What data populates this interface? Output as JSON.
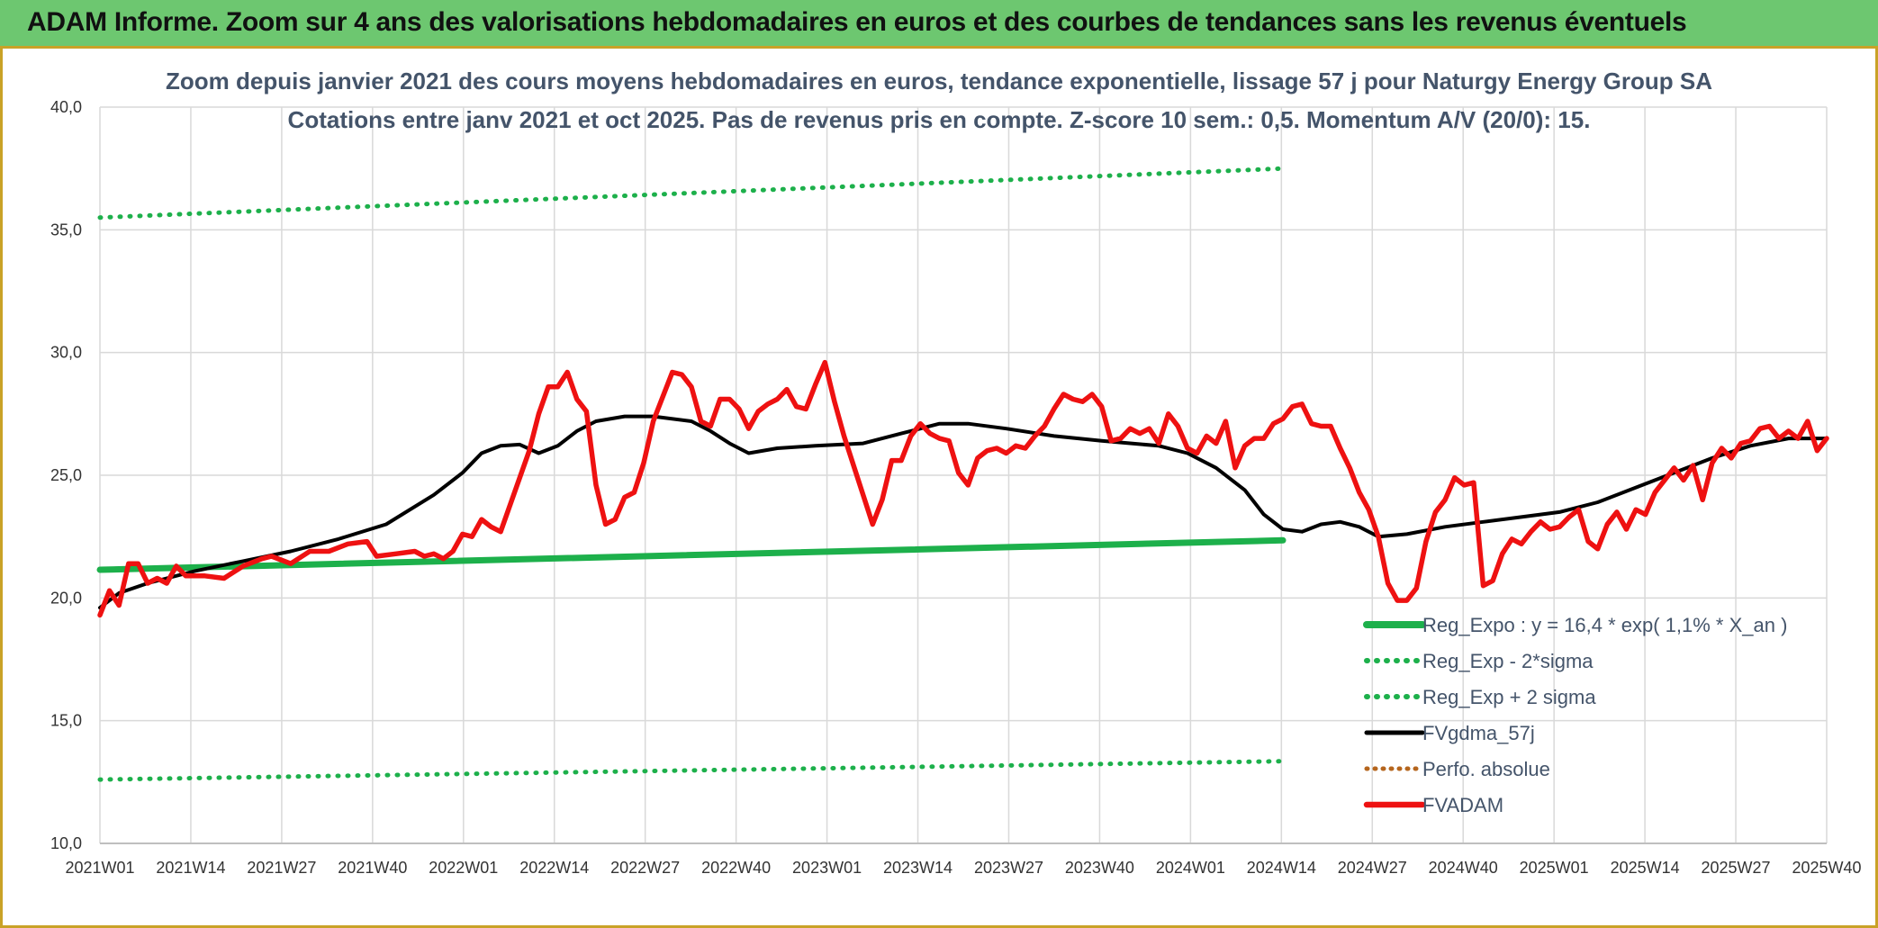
{
  "header": {
    "title": "ADAM Informe. Zoom sur 4 ans des valorisations hebdomadaires en euros et des courbes de tendances sans les revenus éventuels"
  },
  "colors": {
    "green": "#1db04b",
    "black": "#000000",
    "red": "#ee1111",
    "brown": "#b5651d",
    "grid": "#d9d9d9",
    "banner": "#6dc770"
  },
  "chart_data": {
    "type": "line",
    "title_line1": "Zoom depuis janvier 2021 des cours moyens hebdomadaires en euros, tendance exponentielle, lissage 57 j pour Naturgy Energy Group SA",
    "title_line2": "Cotations entre janv 2021 et oct 2025. Pas de revenus pris en compte. Z-score 10 sem.: 0,5. Momentum A/V (20/0): 15.",
    "ylim": [
      10,
      40
    ],
    "y_ticks": [
      "10,0",
      "15,0",
      "20,0",
      "25,0",
      "30,0",
      "35,0",
      "40,0"
    ],
    "x_count": 249,
    "x_tick_labels": [
      "2021W01",
      "2021W14",
      "2021W27",
      "2021W40",
      "2022W01",
      "2022W14",
      "2022W27",
      "2022W40",
      "2023W01",
      "2023W14",
      "2023W27",
      "2023W40",
      "2024W01",
      "2024W14",
      "2024W27",
      "2024W40",
      "2025W01",
      "2025W14",
      "2025W27",
      "2025W40"
    ],
    "series": [
      {
        "name": "Reg_Expo : y = 16,4 * exp( 1,1% *  X_an )",
        "style": "solid-green",
        "anchors": [
          [
            0,
            21.15
          ],
          [
            248,
            22.35
          ]
        ]
      },
      {
        "name": "Reg_Exp - 2*sigma",
        "style": "dotted-green",
        "anchors": [
          [
            0,
            12.6
          ],
          [
            248,
            13.35
          ]
        ]
      },
      {
        "name": "Reg_Exp + 2 sigma",
        "style": "dotted-green",
        "anchors": [
          [
            0,
            35.5
          ],
          [
            248,
            37.5
          ]
        ]
      },
      {
        "name": "FVgdma_57j",
        "style": "solid-black",
        "anchors": [
          [
            0,
            19.6
          ],
          [
            4,
            20.2
          ],
          [
            10,
            20.6
          ],
          [
            20,
            21.1
          ],
          [
            30,
            21.5
          ],
          [
            40,
            21.9
          ],
          [
            50,
            22.4
          ],
          [
            60,
            23.0
          ],
          [
            70,
            24.2
          ],
          [
            76,
            25.1
          ],
          [
            80,
            25.9
          ],
          [
            84,
            26.2
          ],
          [
            88,
            26.25
          ],
          [
            92,
            25.9
          ],
          [
            96,
            26.2
          ],
          [
            100,
            26.8
          ],
          [
            104,
            27.2
          ],
          [
            110,
            27.4
          ],
          [
            116,
            27.4
          ],
          [
            124,
            27.2
          ],
          [
            128,
            26.8
          ],
          [
            132,
            26.3
          ],
          [
            136,
            25.9
          ],
          [
            142,
            26.1
          ],
          [
            150,
            26.2
          ],
          [
            160,
            26.3
          ],
          [
            168,
            26.7
          ],
          [
            176,
            27.1
          ],
          [
            182,
            27.1
          ],
          [
            190,
            26.9
          ],
          [
            200,
            26.6
          ],
          [
            210,
            26.4
          ],
          [
            222,
            26.2
          ],
          [
            228,
            25.9
          ],
          [
            234,
            25.3
          ],
          [
            240,
            24.4
          ],
          [
            244,
            23.4
          ],
          [
            248,
            22.8
          ],
          [
            252,
            22.7
          ],
          [
            256,
            23.0
          ],
          [
            260,
            23.1
          ],
          [
            264,
            22.9
          ],
          [
            268,
            22.5
          ],
          [
            274,
            22.6
          ],
          [
            282,
            22.9
          ],
          [
            290,
            23.1
          ],
          [
            298,
            23.3
          ],
          [
            306,
            23.5
          ],
          [
            314,
            23.9
          ],
          [
            322,
            24.5
          ],
          [
            330,
            25.1
          ],
          [
            338,
            25.7
          ],
          [
            346,
            26.2
          ],
          [
            354,
            26.5
          ],
          [
            362,
            26.5
          ]
        ]
      },
      {
        "name": "Perfo. absolue",
        "style": "dotted-brown",
        "anchors": []
      },
      {
        "name": "FVADAM",
        "style": "solid-red",
        "anchors": [
          [
            0,
            19.3
          ],
          [
            2,
            20.3
          ],
          [
            4,
            19.7
          ],
          [
            6,
            21.4
          ],
          [
            8,
            21.4
          ],
          [
            10,
            20.6
          ],
          [
            12,
            20.8
          ],
          [
            14,
            20.6
          ],
          [
            16,
            21.3
          ],
          [
            18,
            20.9
          ],
          [
            22,
            20.9
          ],
          [
            26,
            20.8
          ],
          [
            30,
            21.3
          ],
          [
            34,
            21.6
          ],
          [
            36,
            21.7
          ],
          [
            40,
            21.4
          ],
          [
            44,
            21.9
          ],
          [
            48,
            21.9
          ],
          [
            52,
            22.2
          ],
          [
            56,
            22.3
          ],
          [
            58,
            21.7
          ],
          [
            62,
            21.8
          ],
          [
            66,
            21.9
          ],
          [
            68,
            21.7
          ],
          [
            70,
            21.8
          ],
          [
            72,
            21.6
          ],
          [
            74,
            21.9
          ],
          [
            76,
            22.6
          ],
          [
            78,
            22.5
          ],
          [
            80,
            23.2
          ],
          [
            82,
            22.9
          ],
          [
            84,
            22.7
          ],
          [
            86,
            23.8
          ],
          [
            88,
            24.9
          ],
          [
            90,
            26.0
          ],
          [
            92,
            27.5
          ],
          [
            94,
            28.6
          ],
          [
            96,
            28.6
          ],
          [
            98,
            29.2
          ],
          [
            100,
            28.1
          ],
          [
            102,
            27.6
          ],
          [
            104,
            24.6
          ],
          [
            106,
            23.0
          ],
          [
            108,
            23.2
          ],
          [
            110,
            24.1
          ],
          [
            112,
            24.3
          ],
          [
            114,
            25.5
          ],
          [
            116,
            27.2
          ],
          [
            118,
            28.2
          ],
          [
            120,
            29.2
          ],
          [
            122,
            29.1
          ],
          [
            124,
            28.6
          ],
          [
            126,
            27.2
          ],
          [
            128,
            27.0
          ],
          [
            130,
            28.1
          ],
          [
            132,
            28.1
          ],
          [
            134,
            27.7
          ],
          [
            136,
            26.9
          ],
          [
            138,
            27.6
          ],
          [
            140,
            27.9
          ],
          [
            142,
            28.1
          ],
          [
            144,
            28.5
          ],
          [
            146,
            27.8
          ],
          [
            148,
            27.7
          ],
          [
            150,
            28.7
          ],
          [
            152,
            29.6
          ],
          [
            154,
            28.0
          ],
          [
            156,
            26.6
          ],
          [
            158,
            25.4
          ],
          [
            160,
            24.2
          ],
          [
            162,
            23.0
          ],
          [
            164,
            24.0
          ],
          [
            166,
            25.6
          ],
          [
            168,
            25.6
          ],
          [
            170,
            26.6
          ],
          [
            172,
            27.1
          ],
          [
            174,
            26.7
          ],
          [
            176,
            26.5
          ],
          [
            178,
            26.4
          ],
          [
            180,
            25.1
          ],
          [
            182,
            24.6
          ],
          [
            184,
            25.7
          ],
          [
            186,
            26.0
          ],
          [
            188,
            26.1
          ],
          [
            190,
            25.9
          ],
          [
            192,
            26.2
          ],
          [
            194,
            26.1
          ],
          [
            196,
            26.6
          ],
          [
            198,
            27.0
          ],
          [
            200,
            27.7
          ],
          [
            202,
            28.3
          ],
          [
            204,
            28.1
          ],
          [
            206,
            28.0
          ],
          [
            208,
            28.3
          ],
          [
            210,
            27.8
          ],
          [
            212,
            26.4
          ],
          [
            214,
            26.5
          ],
          [
            216,
            26.9
          ],
          [
            218,
            26.7
          ],
          [
            220,
            26.9
          ],
          [
            222,
            26.3
          ],
          [
            224,
            27.5
          ],
          [
            226,
            27.0
          ],
          [
            228,
            26.1
          ],
          [
            230,
            25.9
          ],
          [
            232,
            26.6
          ],
          [
            234,
            26.3
          ],
          [
            236,
            27.2
          ],
          [
            238,
            25.3
          ],
          [
            240,
            26.2
          ],
          [
            242,
            26.5
          ],
          [
            244,
            26.5
          ],
          [
            246,
            27.1
          ],
          [
            248,
            27.3
          ],
          [
            250,
            27.8
          ],
          [
            252,
            27.9
          ],
          [
            254,
            27.1
          ],
          [
            256,
            27.0
          ],
          [
            258,
            27.0
          ],
          [
            260,
            26.1
          ],
          [
            262,
            25.3
          ],
          [
            264,
            24.3
          ],
          [
            266,
            23.6
          ],
          [
            268,
            22.5
          ],
          [
            270,
            20.6
          ],
          [
            272,
            19.9
          ],
          [
            274,
            19.9
          ],
          [
            276,
            20.4
          ],
          [
            278,
            22.3
          ],
          [
            280,
            23.5
          ],
          [
            282,
            24.0
          ],
          [
            284,
            24.9
          ],
          [
            286,
            24.6
          ],
          [
            288,
            24.7
          ],
          [
            290,
            20.5
          ],
          [
            292,
            20.7
          ],
          [
            294,
            21.8
          ],
          [
            296,
            22.4
          ],
          [
            298,
            22.2
          ],
          [
            300,
            22.7
          ],
          [
            302,
            23.1
          ],
          [
            304,
            22.8
          ],
          [
            306,
            22.9
          ],
          [
            308,
            23.3
          ],
          [
            310,
            23.6
          ],
          [
            312,
            22.3
          ],
          [
            314,
            22.0
          ],
          [
            316,
            23.0
          ],
          [
            318,
            23.5
          ],
          [
            320,
            22.8
          ],
          [
            322,
            23.6
          ],
          [
            324,
            23.4
          ],
          [
            326,
            24.3
          ],
          [
            328,
            24.8
          ],
          [
            330,
            25.3
          ],
          [
            332,
            24.8
          ],
          [
            334,
            25.4
          ],
          [
            336,
            24.0
          ],
          [
            338,
            25.5
          ],
          [
            340,
            26.1
          ],
          [
            342,
            25.7
          ],
          [
            344,
            26.3
          ],
          [
            346,
            26.4
          ],
          [
            348,
            26.9
          ],
          [
            350,
            27.0
          ],
          [
            352,
            26.5
          ],
          [
            354,
            26.8
          ],
          [
            356,
            26.5
          ],
          [
            358,
            27.2
          ],
          [
            360,
            26.0
          ],
          [
            362,
            26.5
          ]
        ]
      }
    ]
  },
  "legend": {
    "items": [
      {
        "label": "Reg_Expo : y = 16,4 * exp( 1,1% *  X_an )",
        "style": "solid-green"
      },
      {
        "label": "Reg_Exp - 2*sigma",
        "style": "dotted-green"
      },
      {
        "label": "Reg_Exp + 2 sigma",
        "style": "dotted-green"
      },
      {
        "label": "FVgdma_57j",
        "style": "solid-black"
      },
      {
        "label": "Perfo. absolue",
        "style": "dotted-brown"
      },
      {
        "label": "FVADAM",
        "style": "solid-red"
      }
    ]
  }
}
